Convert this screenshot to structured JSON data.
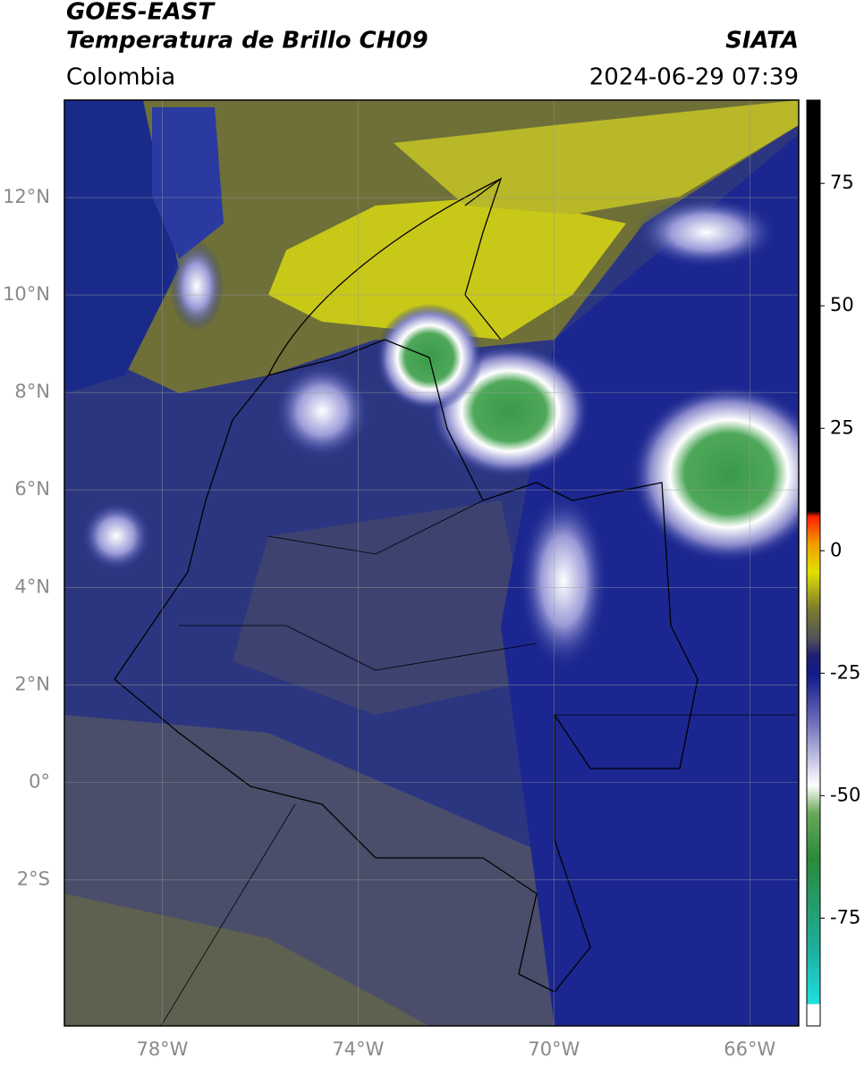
{
  "header": {
    "title": "GOES-EAST",
    "subtitle": "Temperatura de Brillo CH09",
    "agency": "SIATA",
    "region": "Colombia",
    "timestamp": "2024-06-29 07:39"
  },
  "map": {
    "xlim": [
      -80,
      -65
    ],
    "ylim": [
      -5,
      14
    ],
    "grid": true,
    "xticks": [
      {
        "value": -78,
        "label": "78°W"
      },
      {
        "value": -74,
        "label": "74°W"
      },
      {
        "value": -70,
        "label": "70°W"
      },
      {
        "value": -66,
        "label": "66°W"
      }
    ],
    "yticks": [
      {
        "value": 12,
        "label": "12°N"
      },
      {
        "value": 10,
        "label": "10°N"
      },
      {
        "value": 8,
        "label": "8°N"
      },
      {
        "value": 6,
        "label": "6°N"
      },
      {
        "value": 4,
        "label": "4°N"
      },
      {
        "value": 2,
        "label": "2°N"
      },
      {
        "value": 0,
        "label": "0°"
      },
      {
        "value": -2,
        "label": "2°S"
      }
    ]
  },
  "colorbar": {
    "clim": [
      -97,
      92
    ],
    "ticks": [
      75,
      50,
      25,
      0,
      -25,
      -50,
      -75
    ]
  }
}
